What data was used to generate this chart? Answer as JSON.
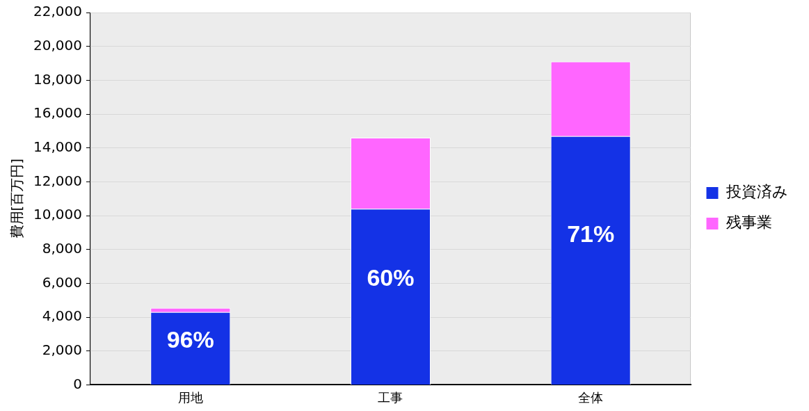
{
  "chart_data": {
    "type": "bar",
    "stacked": true,
    "ylabel": "費用[百万円]",
    "categories": [
      "用地",
      "工事",
      "全体"
    ],
    "series": [
      {
        "name": "投資済み",
        "color": "#1432e6",
        "values": [
          4300,
          10400,
          14700
        ]
      },
      {
        "name": "残事業",
        "color": "#ff66ff",
        "values": [
          250,
          4200,
          4400
        ]
      }
    ],
    "ylim": [
      0,
      22000
    ],
    "yticks": [
      {
        "value": 0,
        "label": "0"
      },
      {
        "value": 2000,
        "label": "2,000"
      },
      {
        "value": 4000,
        "label": "4,000"
      },
      {
        "value": 6000,
        "label": "6,000"
      },
      {
        "value": 8000,
        "label": "8,000"
      },
      {
        "value": 10000,
        "label": "10,000"
      },
      {
        "value": 12000,
        "label": "12,000"
      },
      {
        "value": 14000,
        "label": "14,000"
      },
      {
        "value": 16000,
        "label": "16,000"
      },
      {
        "value": 18000,
        "label": "18,000"
      },
      {
        "value": 20000,
        "label": "20,000"
      },
      {
        "value": 22000,
        "label": "22,000"
      }
    ],
    "annotations": [
      "96%",
      "60%",
      "71%"
    ],
    "grid": "y",
    "legend": "right"
  }
}
